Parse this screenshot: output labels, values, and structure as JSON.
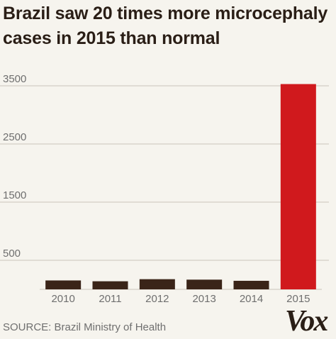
{
  "title": "Brazil saw 20 times more microcephaly cases in 2015 than normal",
  "source": "SOURCE: Brazil Ministry of Health",
  "logo": "Vox",
  "colors": {
    "bar": "#3a2418",
    "highlight": "#d0191d",
    "grid": "#c9c4bb",
    "tick_text": "#6f6f6f",
    "title": "#2a1e16"
  },
  "chart_data": {
    "type": "bar",
    "title": "Brazil saw 20 times more microcephaly cases in 2015 than normal",
    "xlabel": "",
    "ylabel": "",
    "categories": [
      "2010",
      "2011",
      "2012",
      "2013",
      "2014",
      "2015"
    ],
    "values": [
      153,
      139,
      175,
      167,
      147,
      3530
    ],
    "highlight_category": "2015",
    "ylim": [
      0,
      3500
    ],
    "yticks": [
      500,
      1500,
      2500,
      3500
    ],
    "grid": true,
    "legend": "none"
  }
}
